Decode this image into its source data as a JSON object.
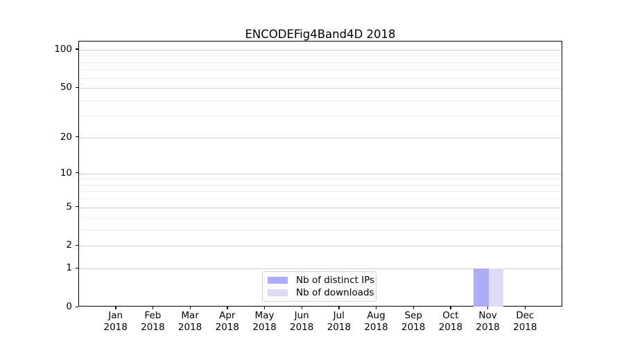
{
  "chart_data": {
    "type": "bar",
    "title": "ENCODEFig4Band4D 2018",
    "categories": [
      "Jan 2018",
      "Feb 2018",
      "Mar 2018",
      "Apr 2018",
      "May 2018",
      "Jun 2018",
      "Jul 2018",
      "Aug 2018",
      "Sep 2018",
      "Oct 2018",
      "Nov 2018",
      "Dec 2018"
    ],
    "series": [
      {
        "name": "Nb of distinct IPs",
        "color": "#acacf8",
        "values": [
          0,
          0,
          0,
          0,
          0,
          0,
          0,
          0,
          0,
          0,
          1,
          0
        ]
      },
      {
        "name": "Nb of downloads",
        "color": "#dcdcfa",
        "values": [
          0,
          0,
          0,
          0,
          0,
          0,
          0,
          0,
          0,
          0,
          1,
          0
        ]
      }
    ],
    "xlabel": "",
    "ylabel": "",
    "yscale": "log1p",
    "ylim": [
      0,
      116
    ],
    "y_ticks": [
      0,
      1,
      2,
      5,
      10,
      20,
      50,
      100
    ],
    "y_minor_ticks": [
      3,
      4,
      6,
      7,
      8,
      9,
      30,
      40,
      60,
      70,
      80,
      90
    ],
    "grid": "horizontal-major-and-minor",
    "legend_position": "lower-center-inside"
  },
  "colors": {
    "major_grid": "#cfcfcf",
    "minor_grid": "#eeeeee",
    "spine": "#000000",
    "legend_border": "#d2d2d2"
  }
}
